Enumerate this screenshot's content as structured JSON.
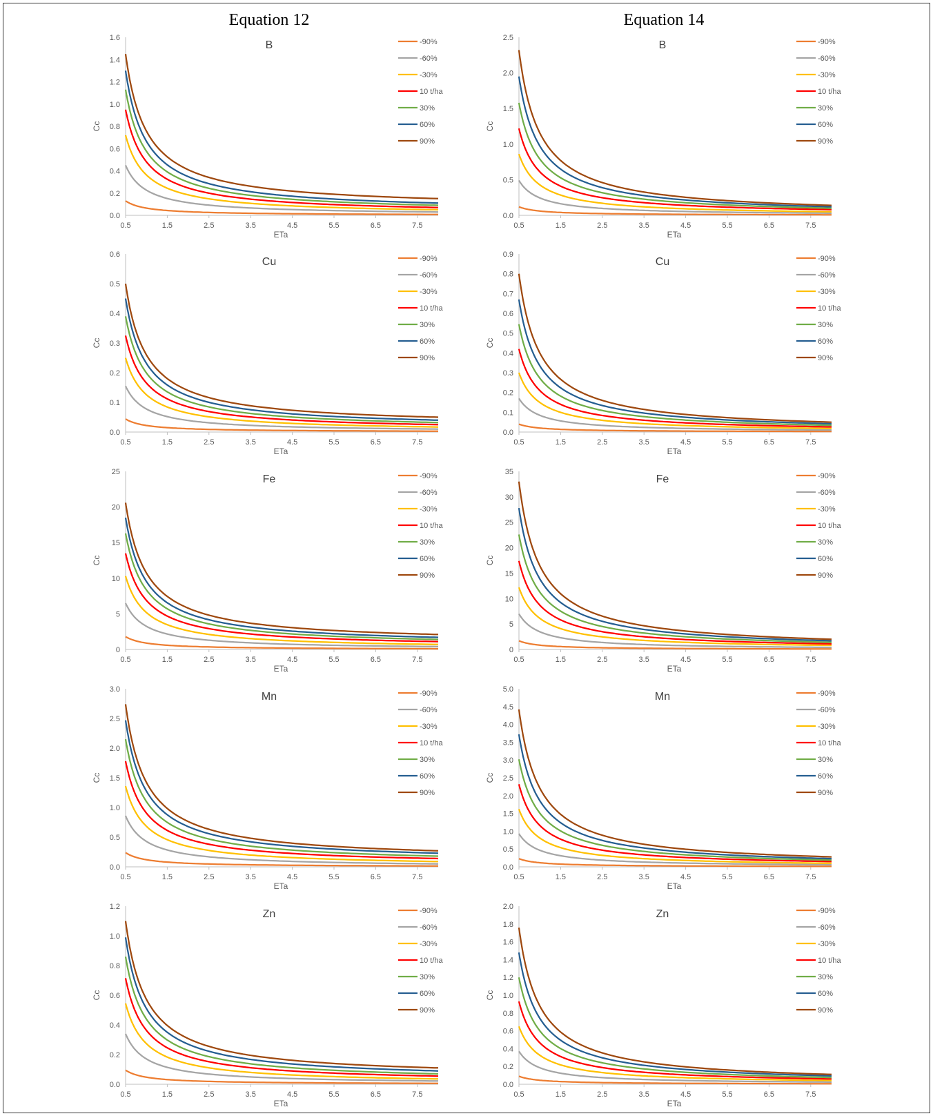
{
  "columns": [
    {
      "title": "Equation 12"
    },
    {
      "title": "Equation 14"
    }
  ],
  "legend_order": [
    "-90%",
    "-60%",
    "-30%",
    "10 t/ha",
    "30%",
    "60%",
    "90%"
  ],
  "series_colors": {
    "-90%": "#ED7D31",
    "-60%": "#A5A5A5",
    "-30%": "#FFC000",
    "10 t/ha": "#FF0000",
    "30%": "#70AD47",
    "60%": "#255E91",
    "90%": "#9E480E"
  },
  "chart_data": [
    {
      "type": "line",
      "column": 0,
      "title": "B",
      "xlabel": "ETa",
      "ylabel": "Cc",
      "xlim": [
        0.5,
        8
      ],
      "xticks": [
        "0.5",
        "1.5",
        "2.5",
        "3.5",
        "4.5",
        "5.5",
        "6.5",
        "7.5"
      ],
      "ylim": [
        0,
        1.6
      ],
      "yticks": [
        "0.0",
        "0.2",
        "0.4",
        "0.6",
        "0.8",
        "1.0",
        "1.2",
        "1.4",
        "1.6"
      ],
      "series": [
        {
          "name": "-90%",
          "start": 0.13,
          "end": 0.008
        },
        {
          "name": "-60%",
          "start": 0.45,
          "end": 0.03
        },
        {
          "name": "-30%",
          "start": 0.72,
          "end": 0.05
        },
        {
          "name": "10 t/ha",
          "start": 0.95,
          "end": 0.07
        },
        {
          "name": "30%",
          "start": 1.13,
          "end": 0.09
        },
        {
          "name": "60%",
          "start": 1.3,
          "end": 0.11
        },
        {
          "name": "90%",
          "start": 1.45,
          "end": 0.15
        }
      ]
    },
    {
      "type": "line",
      "column": 1,
      "title": "B",
      "xlabel": "ETa",
      "ylabel": "Cc",
      "xlim": [
        0.5,
        8
      ],
      "xticks": [
        "0.5",
        "1.5",
        "2.5",
        "3.5",
        "4.5",
        "5.5",
        "6.5",
        "7.5"
      ],
      "ylim": [
        0,
        2.5
      ],
      "yticks": [
        "0.0",
        "0.5",
        "1.0",
        "1.5",
        "2.0",
        "2.5"
      ],
      "series": [
        {
          "name": "-90%",
          "start": 0.12,
          "end": 0.008
        },
        {
          "name": "-60%",
          "start": 0.49,
          "end": 0.03
        },
        {
          "name": "-30%",
          "start": 0.86,
          "end": 0.05
        },
        {
          "name": "10 t/ha",
          "start": 1.22,
          "end": 0.08
        },
        {
          "name": "30%",
          "start": 1.58,
          "end": 0.1
        },
        {
          "name": "60%",
          "start": 1.95,
          "end": 0.12
        },
        {
          "name": "90%",
          "start": 2.32,
          "end": 0.14
        }
      ]
    },
    {
      "type": "line",
      "column": 0,
      "title": "Cu",
      "xlabel": "ETa",
      "ylabel": "Cc",
      "xlim": [
        0.5,
        8
      ],
      "xticks": [
        "0.5",
        "1.5",
        "2.5",
        "3.5",
        "4.5",
        "5.5",
        "6.5",
        "7.5"
      ],
      "ylim": [
        0,
        0.6
      ],
      "yticks": [
        "0.0",
        "0.1",
        "0.2",
        "0.3",
        "0.4",
        "0.5",
        "0.6"
      ],
      "series": [
        {
          "name": "-90%",
          "start": 0.044,
          "end": 0.003
        },
        {
          "name": "-60%",
          "start": 0.155,
          "end": 0.01
        },
        {
          "name": "-30%",
          "start": 0.25,
          "end": 0.017
        },
        {
          "name": "10 t/ha",
          "start": 0.325,
          "end": 0.025
        },
        {
          "name": "30%",
          "start": 0.39,
          "end": 0.032
        },
        {
          "name": "60%",
          "start": 0.45,
          "end": 0.04
        },
        {
          "name": "90%",
          "start": 0.5,
          "end": 0.05
        }
      ]
    },
    {
      "type": "line",
      "column": 1,
      "title": "Cu",
      "xlabel": "ETa",
      "ylabel": "Cc",
      "xlim": [
        0.5,
        8
      ],
      "xticks": [
        "0.5",
        "1.5",
        "2.5",
        "3.5",
        "4.5",
        "5.5",
        "6.5",
        "7.5"
      ],
      "ylim": [
        0,
        0.9
      ],
      "yticks": [
        "0.0",
        "0.1",
        "0.2",
        "0.3",
        "0.4",
        "0.5",
        "0.6",
        "0.7",
        "0.8",
        "0.9"
      ],
      "series": [
        {
          "name": "-90%",
          "start": 0.04,
          "end": 0.003
        },
        {
          "name": "-60%",
          "start": 0.17,
          "end": 0.01
        },
        {
          "name": "-30%",
          "start": 0.3,
          "end": 0.018
        },
        {
          "name": "10 t/ha",
          "start": 0.42,
          "end": 0.026
        },
        {
          "name": "30%",
          "start": 0.545,
          "end": 0.034
        },
        {
          "name": "60%",
          "start": 0.67,
          "end": 0.042
        },
        {
          "name": "90%",
          "start": 0.8,
          "end": 0.05
        }
      ]
    },
    {
      "type": "line",
      "column": 0,
      "title": "Fe",
      "xlabel": "ETa",
      "ylabel": "Cc",
      "xlim": [
        0.5,
        8
      ],
      "xticks": [
        "0.5",
        "1.5",
        "2.5",
        "3.5",
        "4.5",
        "5.5",
        "6.5",
        "7.5"
      ],
      "ylim": [
        0,
        25
      ],
      "yticks": [
        "0",
        "5",
        "10",
        "15",
        "20",
        "25"
      ],
      "series": [
        {
          "name": "-90%",
          "start": 1.8,
          "end": 0.1
        },
        {
          "name": "-60%",
          "start": 6.5,
          "end": 0.4
        },
        {
          "name": "-30%",
          "start": 10.3,
          "end": 0.7
        },
        {
          "name": "10 t/ha",
          "start": 13.5,
          "end": 1.1
        },
        {
          "name": "30%",
          "start": 16.3,
          "end": 1.4
        },
        {
          "name": "60%",
          "start": 18.5,
          "end": 1.7
        },
        {
          "name": "90%",
          "start": 20.6,
          "end": 2.1
        }
      ]
    },
    {
      "type": "line",
      "column": 1,
      "title": "Fe",
      "xlabel": "ETa",
      "ylabel": "Cc",
      "xlim": [
        0.5,
        8
      ],
      "xticks": [
        "0.5",
        "1.5",
        "2.5",
        "3.5",
        "4.5",
        "5.5",
        "6.5",
        "7.5"
      ],
      "ylim": [
        0,
        35
      ],
      "yticks": [
        "0",
        "5",
        "10",
        "15",
        "20",
        "25",
        "30",
        "35"
      ],
      "series": [
        {
          "name": "-90%",
          "start": 1.7,
          "end": 0.1
        },
        {
          "name": "-60%",
          "start": 7.0,
          "end": 0.4
        },
        {
          "name": "-30%",
          "start": 12.2,
          "end": 0.8
        },
        {
          "name": "10 t/ha",
          "start": 17.4,
          "end": 1.1
        },
        {
          "name": "30%",
          "start": 22.6,
          "end": 1.4
        },
        {
          "name": "60%",
          "start": 27.8,
          "end": 1.7
        },
        {
          "name": "90%",
          "start": 33.0,
          "end": 2.0
        }
      ]
    },
    {
      "type": "line",
      "column": 0,
      "title": "Mn",
      "xlabel": "ETa",
      "ylabel": "Cc",
      "xlim": [
        0.5,
        8
      ],
      "xticks": [
        "0.5",
        "1.5",
        "2.5",
        "3.5",
        "4.5",
        "5.5",
        "6.5",
        "7.5"
      ],
      "ylim": [
        0,
        3.0
      ],
      "yticks": [
        "0.0",
        "0.5",
        "1.0",
        "1.5",
        "2.0",
        "2.5",
        "3.0"
      ],
      "series": [
        {
          "name": "-90%",
          "start": 0.24,
          "end": 0.015
        },
        {
          "name": "-60%",
          "start": 0.86,
          "end": 0.05
        },
        {
          "name": "-30%",
          "start": 1.36,
          "end": 0.09
        },
        {
          "name": "10 t/ha",
          "start": 1.78,
          "end": 0.14
        },
        {
          "name": "30%",
          "start": 2.15,
          "end": 0.18
        },
        {
          "name": "60%",
          "start": 2.47,
          "end": 0.23
        },
        {
          "name": "90%",
          "start": 2.74,
          "end": 0.27
        }
      ]
    },
    {
      "type": "line",
      "column": 1,
      "title": "Mn",
      "xlabel": "ETa",
      "ylabel": "Cc",
      "xlim": [
        0.5,
        8
      ],
      "xticks": [
        "0.5",
        "1.5",
        "2.5",
        "3.5",
        "4.5",
        "5.5",
        "6.5",
        "7.5"
      ],
      "ylim": [
        0,
        5.0
      ],
      "yticks": [
        "0.0",
        "0.5",
        "1.0",
        "1.5",
        "2.0",
        "2.5",
        "3.0",
        "3.5",
        "4.0",
        "4.5",
        "5.0"
      ],
      "series": [
        {
          "name": "-90%",
          "start": 0.23,
          "end": 0.015
        },
        {
          "name": "-60%",
          "start": 0.93,
          "end": 0.06
        },
        {
          "name": "-30%",
          "start": 1.62,
          "end": 0.1
        },
        {
          "name": "10 t/ha",
          "start": 2.32,
          "end": 0.15
        },
        {
          "name": "30%",
          "start": 3.02,
          "end": 0.19
        },
        {
          "name": "60%",
          "start": 3.72,
          "end": 0.23
        },
        {
          "name": "90%",
          "start": 4.42,
          "end": 0.28
        }
      ]
    },
    {
      "type": "line",
      "column": 0,
      "title": "Zn",
      "xlabel": "ETa",
      "ylabel": "Cc",
      "xlim": [
        0.5,
        8
      ],
      "xticks": [
        "0.5",
        "1.5",
        "2.5",
        "3.5",
        "4.5",
        "5.5",
        "6.5",
        "7.5"
      ],
      "ylim": [
        0,
        1.2
      ],
      "yticks": [
        "0.0",
        "0.2",
        "0.4",
        "0.6",
        "0.8",
        "1.0",
        "1.2"
      ],
      "series": [
        {
          "name": "-90%",
          "start": 0.095,
          "end": 0.006
        },
        {
          "name": "-60%",
          "start": 0.34,
          "end": 0.022
        },
        {
          "name": "-30%",
          "start": 0.545,
          "end": 0.036
        },
        {
          "name": "10 t/ha",
          "start": 0.715,
          "end": 0.055
        },
        {
          "name": "30%",
          "start": 0.86,
          "end": 0.07
        },
        {
          "name": "60%",
          "start": 0.99,
          "end": 0.09
        },
        {
          "name": "90%",
          "start": 1.1,
          "end": 0.11
        }
      ]
    },
    {
      "type": "line",
      "column": 1,
      "title": "Zn",
      "xlabel": "ETa",
      "ylabel": "Cc",
      "xlim": [
        0.5,
        8
      ],
      "xticks": [
        "0.5",
        "1.5",
        "2.5",
        "3.5",
        "4.5",
        "5.5",
        "6.5",
        "7.5"
      ],
      "ylim": [
        0,
        2.0
      ],
      "yticks": [
        "0.0",
        "0.2",
        "0.4",
        "0.6",
        "0.8",
        "1.0",
        "1.2",
        "1.4",
        "1.6",
        "1.8",
        "2.0"
      ],
      "series": [
        {
          "name": "-90%",
          "start": 0.09,
          "end": 0.006
        },
        {
          "name": "-60%",
          "start": 0.37,
          "end": 0.024
        },
        {
          "name": "-30%",
          "start": 0.65,
          "end": 0.042
        },
        {
          "name": "10 t/ha",
          "start": 0.93,
          "end": 0.06
        },
        {
          "name": "30%",
          "start": 1.2,
          "end": 0.076
        },
        {
          "name": "60%",
          "start": 1.48,
          "end": 0.094
        },
        {
          "name": "90%",
          "start": 1.76,
          "end": 0.11
        }
      ]
    }
  ]
}
